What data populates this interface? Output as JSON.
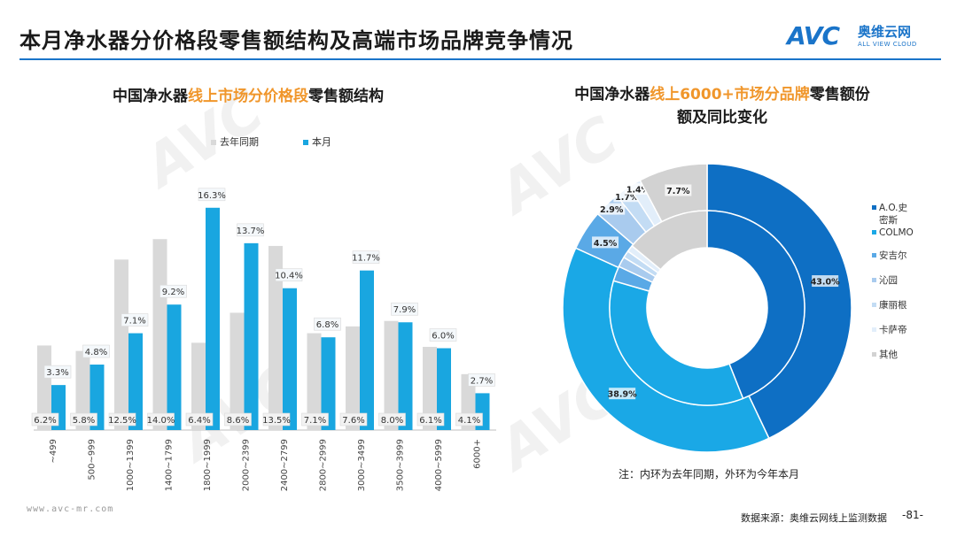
{
  "header": {
    "title": "本月净水器分价格段零售额结构及高端市场品牌竞争情况",
    "logo_mark": "AVC",
    "logo_cn": "奥维云网",
    "logo_en": "ALL VIEW CLOUD"
  },
  "left_chart": {
    "title_pre": "中国净水器",
    "title_hl": "线上市场分价格段",
    "title_post": "零售额结构"
  },
  "right_chart": {
    "title_pre": "中国净水器",
    "title_hl": "线上6000+市场分品牌",
    "title_post": "零售额份",
    "title_line2": "额及同比变化"
  },
  "chart_data": [
    {
      "type": "bar",
      "categories": [
        "~499",
        "500~999",
        "1000~1399",
        "1400~1799",
        "1800~1999",
        "2000~2399",
        "2400~2799",
        "2800~2999",
        "3000~3499",
        "3500~3999",
        "4000~5999",
        "6000+"
      ],
      "series": [
        {
          "name": "去年同期",
          "values": [
            6.2,
            5.8,
            12.5,
            14.0,
            6.4,
            8.6,
            13.5,
            7.1,
            7.6,
            8.0,
            6.1,
            4.1
          ],
          "labels": [
            "6.2%",
            "5.8%",
            "12.5%",
            "14.0%",
            "6.4%",
            "8.6%",
            "13.5%",
            "7.1%",
            "7.6%",
            "8.0%",
            "6.1%",
            "4.1%"
          ]
        },
        {
          "name": "本月",
          "values": [
            3.3,
            4.8,
            7.1,
            9.2,
            16.3,
            13.7,
            10.4,
            6.8,
            11.7,
            7.9,
            6.0,
            2.7
          ],
          "labels": [
            "3.3%",
            "4.8%",
            "7.1%",
            "9.2%",
            "16.3%",
            "13.7%",
            "10.4%",
            "6.8%",
            "11.7%",
            "7.9%",
            "6.0%",
            "2.7%"
          ]
        }
      ],
      "colors": {
        "去年同期": "#d9d9d9",
        "本月": "#19a6e0"
      },
      "ylim": [
        0,
        17
      ],
      "legend": "top-center"
    },
    {
      "type": "pie",
      "subtype": "donut",
      "categories": [
        "A.O.史密斯",
        "COLMO",
        "安吉尔",
        "沁园",
        "康丽根",
        "卡萨帝",
        "其他"
      ],
      "colors": [
        "#0e6fc4",
        "#1aa8e6",
        "#5aa9e6",
        "#a9cbee",
        "#c3dcf4",
        "#e2eefa",
        "#d2d2d2"
      ],
      "outer_ring": {
        "name": "本月",
        "values": [
          43.0,
          38.9,
          4.5,
          2.9,
          1.7,
          1.4,
          7.7
        ],
        "labels": [
          "43.0%",
          "38.9%",
          "4.5%",
          "2.9%",
          "1.7%",
          "1.4%",
          "7.7%"
        ]
      },
      "inner_ring": {
        "name": "去年同期",
        "values": [
          44.0,
          35.5,
          2.5,
          1.7,
          1.2,
          1.1,
          14.0
        ],
        "labels": []
      },
      "legend": "right"
    }
  ],
  "legend_labels": {
    "last_year": "去年同期",
    "this_month": "本月"
  },
  "right_legend_display": [
    "A.O.史",
    "密斯",
    "COLMO",
    "安吉尔",
    "沁园",
    "康丽根",
    "卡萨帝",
    "其他"
  ],
  "note": "注：内环为去年同期，外环为今年本月",
  "footer": {
    "website": "www.avc-mr.com",
    "source": "数据来源：奥维云网线上监测数据",
    "page": "-81-"
  }
}
